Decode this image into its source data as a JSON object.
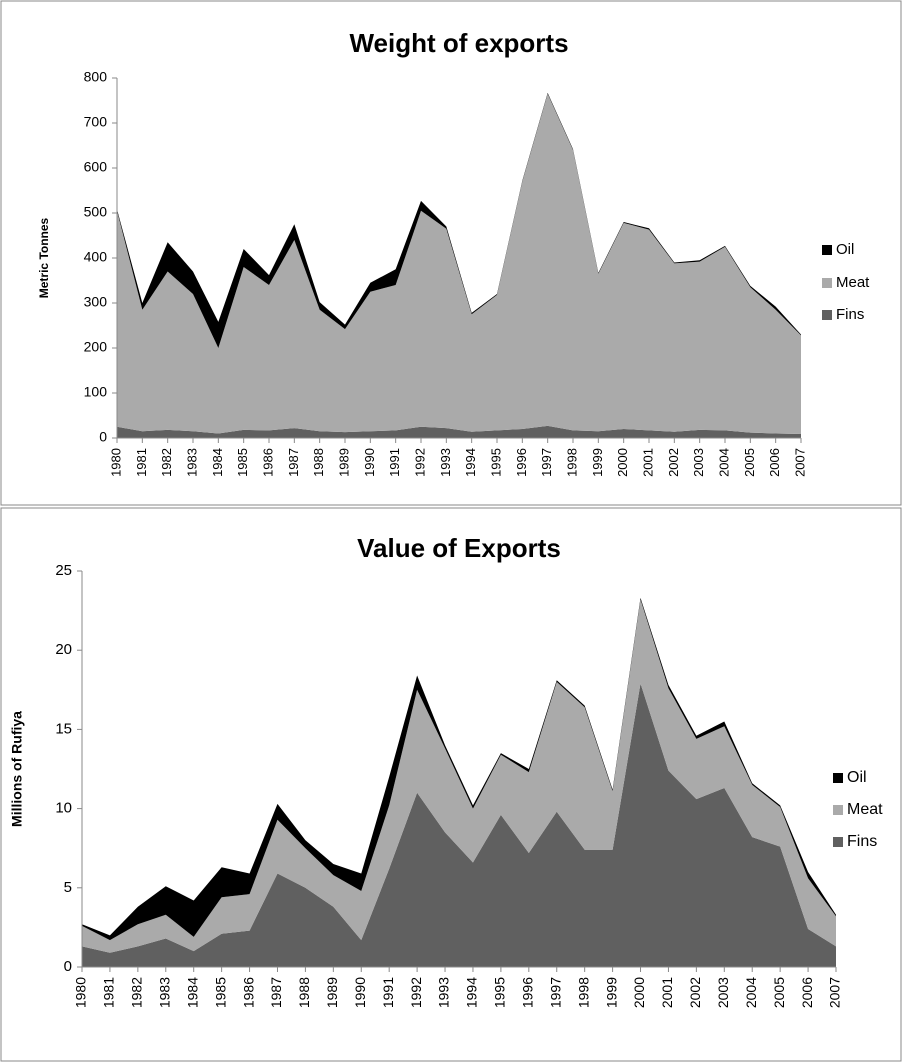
{
  "chart_data": [
    {
      "type": "area",
      "stacked": true,
      "title": "Weight of exports",
      "y_label": "Metric Tonnes",
      "categories": [
        "1980",
        "1981",
        "1982",
        "1983",
        "1984",
        "1985",
        "1986",
        "1987",
        "1988",
        "1989",
        "1990",
        "1991",
        "1992",
        "1993",
        "1994",
        "1995",
        "1996",
        "1997",
        "1998",
        "1999",
        "2000",
        "2001",
        "2002",
        "2003",
        "2004",
        "2005",
        "2006",
        "2007"
      ],
      "series": [
        {
          "name": "Fins",
          "color": "#606060",
          "values": [
            25,
            15,
            18,
            15,
            10,
            18,
            17,
            22,
            15,
            13,
            15,
            17,
            25,
            22,
            14,
            17,
            20,
            27,
            17,
            15,
            20,
            17,
            14,
            18,
            17,
            12,
            10,
            9
          ]
        },
        {
          "name": "Meat",
          "color": "#aaaaaa",
          "values": [
            480,
            270,
            352,
            305,
            190,
            362,
            323,
            418,
            270,
            229,
            310,
            323,
            480,
            443,
            261,
            301,
            550,
            738,
            623,
            350,
            458,
            446,
            374,
            374,
            408,
            323,
            275,
            219
          ]
        },
        {
          "name": "Oil",
          "color": "#000000",
          "values": [
            3,
            15,
            65,
            50,
            58,
            40,
            22,
            35,
            17,
            10,
            20,
            35,
            22,
            5,
            3,
            2,
            2,
            2,
            2,
            2,
            2,
            3,
            2,
            3,
            2,
            3,
            7,
            2
          ]
        }
      ],
      "ylim": [
        0,
        800
      ],
      "yticks": [
        0,
        100,
        200,
        300,
        400,
        500,
        600,
        700,
        800
      ],
      "legend": "right"
    },
    {
      "type": "area",
      "stacked": true,
      "title": "Value of Exports",
      "y_label": "Millions of Rufiya",
      "categories": [
        "1980",
        "1981",
        "1982",
        "1983",
        "1984",
        "1985",
        "1986",
        "1987",
        "1988",
        "1989",
        "1990",
        "1991",
        "1992",
        "1993",
        "1994",
        "1995",
        "1996",
        "1997",
        "1998",
        "1999",
        "2000",
        "2001",
        "2002",
        "2003",
        "2004",
        "2005",
        "2006",
        "2007"
      ],
      "series": [
        {
          "name": "Fins",
          "color": "#606060",
          "values": [
            1.3,
            0.9,
            1.3,
            1.8,
            1.0,
            2.1,
            2.3,
            5.9,
            5.0,
            3.8,
            1.7,
            6.2,
            11.0,
            8.5,
            6.6,
            9.6,
            7.2,
            9.8,
            7.4,
            7.4,
            17.9,
            12.4,
            10.6,
            11.3,
            8.2,
            7.6,
            2.4,
            1.3
          ]
        },
        {
          "name": "Meat",
          "color": "#aaaaaa",
          "values": [
            1.3,
            0.8,
            1.4,
            1.5,
            0.9,
            2.3,
            2.3,
            3.4,
            2.5,
            2.0,
            3.1,
            4.0,
            6.5,
            5.3,
            3.4,
            3.8,
            5.1,
            8.2,
            9.0,
            3.7,
            5.3,
            5.2,
            3.8,
            3.9,
            3.3,
            2.5,
            3.2,
            1.9
          ]
        },
        {
          "name": "Oil",
          "color": "#000000",
          "values": [
            0.1,
            0.3,
            1.1,
            1.8,
            2.3,
            1.9,
            1.3,
            1.0,
            0.5,
            0.7,
            1.1,
            1.8,
            0.9,
            0.2,
            0.2,
            0.1,
            0.2,
            0.1,
            0.1,
            0.1,
            0.1,
            0.2,
            0.2,
            0.3,
            0.1,
            0.1,
            0.4,
            0.1
          ]
        }
      ],
      "ylim": [
        0,
        25
      ],
      "yticks": [
        0,
        5,
        10,
        15,
        20,
        25
      ],
      "legend": "right"
    }
  ]
}
